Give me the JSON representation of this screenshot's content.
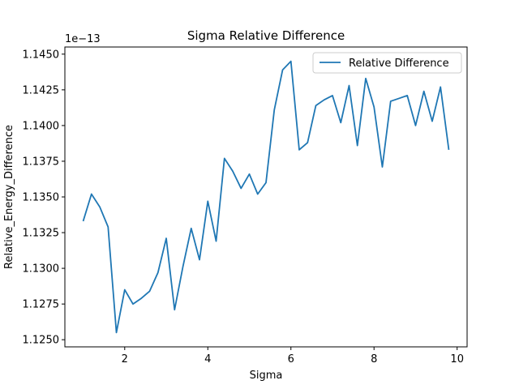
{
  "chart_data": {
    "type": "line",
    "title": "Sigma Relative Difference",
    "xlabel": "Sigma",
    "ylabel": "Relative_Energy_Difference",
    "y_offset_label": "1e−13",
    "xlim": [
      0.56,
      10.24
    ],
    "ylim": [
      1.1245,
      1.1455
    ],
    "x_ticks": [
      2,
      4,
      6,
      8,
      10
    ],
    "y_ticks": [
      1.125,
      1.1275,
      1.13,
      1.1325,
      1.135,
      1.1375,
      1.14,
      1.1425,
      1.145
    ],
    "y_tick_labels": [
      "1.1250",
      "1.1275",
      "1.1300",
      "1.1325",
      "1.1350",
      "1.1375",
      "1.1400",
      "1.1425",
      "1.1450"
    ],
    "grid": false,
    "legend_position": "top-right",
    "series": [
      {
        "name": "Relative Difference",
        "color": "#1f77b4",
        "x": [
          1.0,
          1.2,
          1.4,
          1.6,
          1.8,
          2.0,
          2.2,
          2.4,
          2.6,
          2.8,
          3.0,
          3.2,
          3.4,
          3.6,
          3.8,
          4.0,
          4.2,
          4.4,
          4.6,
          4.8,
          5.0,
          5.2,
          5.4,
          5.6,
          5.8,
          6.0,
          6.2,
          6.4,
          6.6,
          6.8,
          7.0,
          7.2,
          7.4,
          7.6,
          7.8,
          8.0,
          8.2,
          8.4,
          8.6,
          8.8,
          9.0,
          9.2,
          9.4,
          9.6,
          9.8
        ],
        "y": [
          1.1333,
          1.1352,
          1.1343,
          1.1329,
          1.1255,
          1.1285,
          1.1275,
          1.1279,
          1.1284,
          1.1297,
          1.1321,
          1.1271,
          1.1301,
          1.1328,
          1.1306,
          1.1347,
          1.1319,
          1.1377,
          1.1368,
          1.1356,
          1.1366,
          1.1352,
          1.136,
          1.1411,
          1.1439,
          1.1445,
          1.1383,
          1.1388,
          1.1414,
          1.1418,
          1.1421,
          1.1402,
          1.1428,
          1.1386,
          1.1433,
          1.1413,
          1.1371,
          1.1417,
          1.1419,
          1.1421,
          1.14,
          1.1424,
          1.1403,
          1.1427,
          1.1383
        ]
      }
    ]
  }
}
